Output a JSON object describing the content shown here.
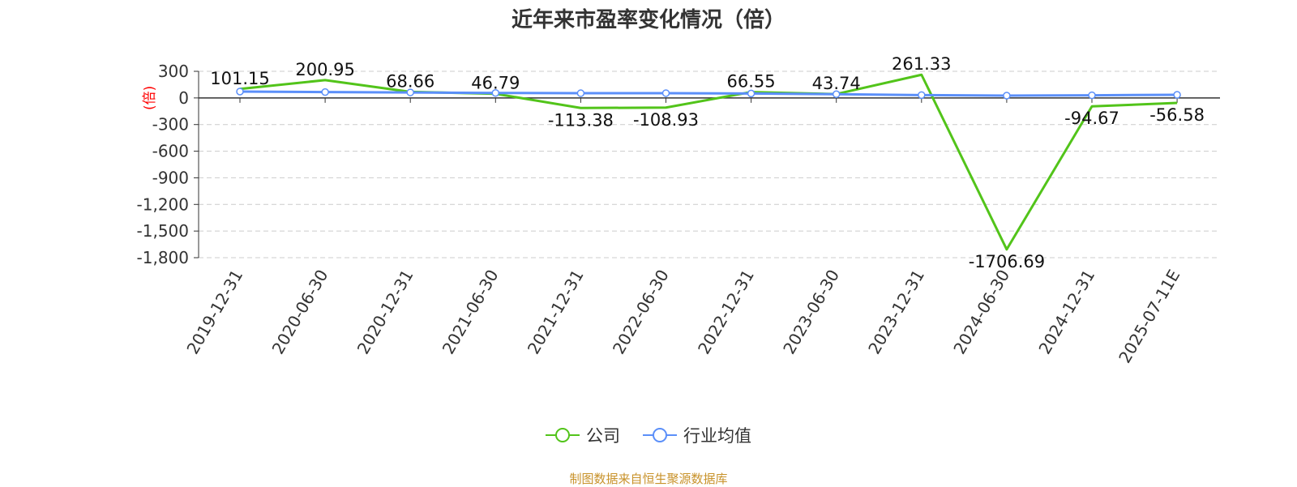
{
  "title": "近年来市盈率变化情况（倍）",
  "source": "制图数据来自恒生聚源数据库",
  "colors": {
    "company": "#52c41a",
    "industry": "#5b8ff9",
    "yaxis_label": "#ff0000",
    "source": "#c8922a"
  },
  "chart_data": {
    "type": "line",
    "title": "近年来市盈率变化情况（倍）",
    "xlabel": "",
    "ylabel": "(倍)",
    "ylim": [
      -1800,
      300
    ],
    "yticks": [
      300,
      0,
      -300,
      -600,
      -900,
      -1200,
      -1500,
      -1800
    ],
    "ytick_labels": [
      "300",
      "0",
      "-300",
      "-600",
      "-900",
      "-1,200",
      "-1,500",
      "-1,800"
    ],
    "grid": true,
    "legend_position": "bottom",
    "categories": [
      "2019-12-31",
      "2020-06-30",
      "2020-12-31",
      "2021-06-30",
      "2021-12-31",
      "2022-06-30",
      "2022-12-31",
      "2023-06-30",
      "2023-12-31",
      "2024-06-30",
      "2024-12-31",
      "2025-07-11E"
    ],
    "series": [
      {
        "name": "公司",
        "values": [
          101.15,
          200.95,
          68.66,
          46.79,
          -113.38,
          -108.93,
          66.55,
          43.74,
          261.33,
          -1706.69,
          -94.67,
          -56.58
        ],
        "labels": [
          "101.15",
          "200.95",
          "68.66",
          "46.79",
          "-113.38",
          "-108.93",
          "66.55",
          "43.74",
          "261.33",
          "-1706.69",
          "-94.67",
          "-56.58"
        ]
      },
      {
        "name": "行业均值",
        "values": [
          72,
          66,
          62,
          56,
          53,
          54,
          50,
          42,
          32,
          26,
          30,
          35
        ]
      }
    ]
  }
}
